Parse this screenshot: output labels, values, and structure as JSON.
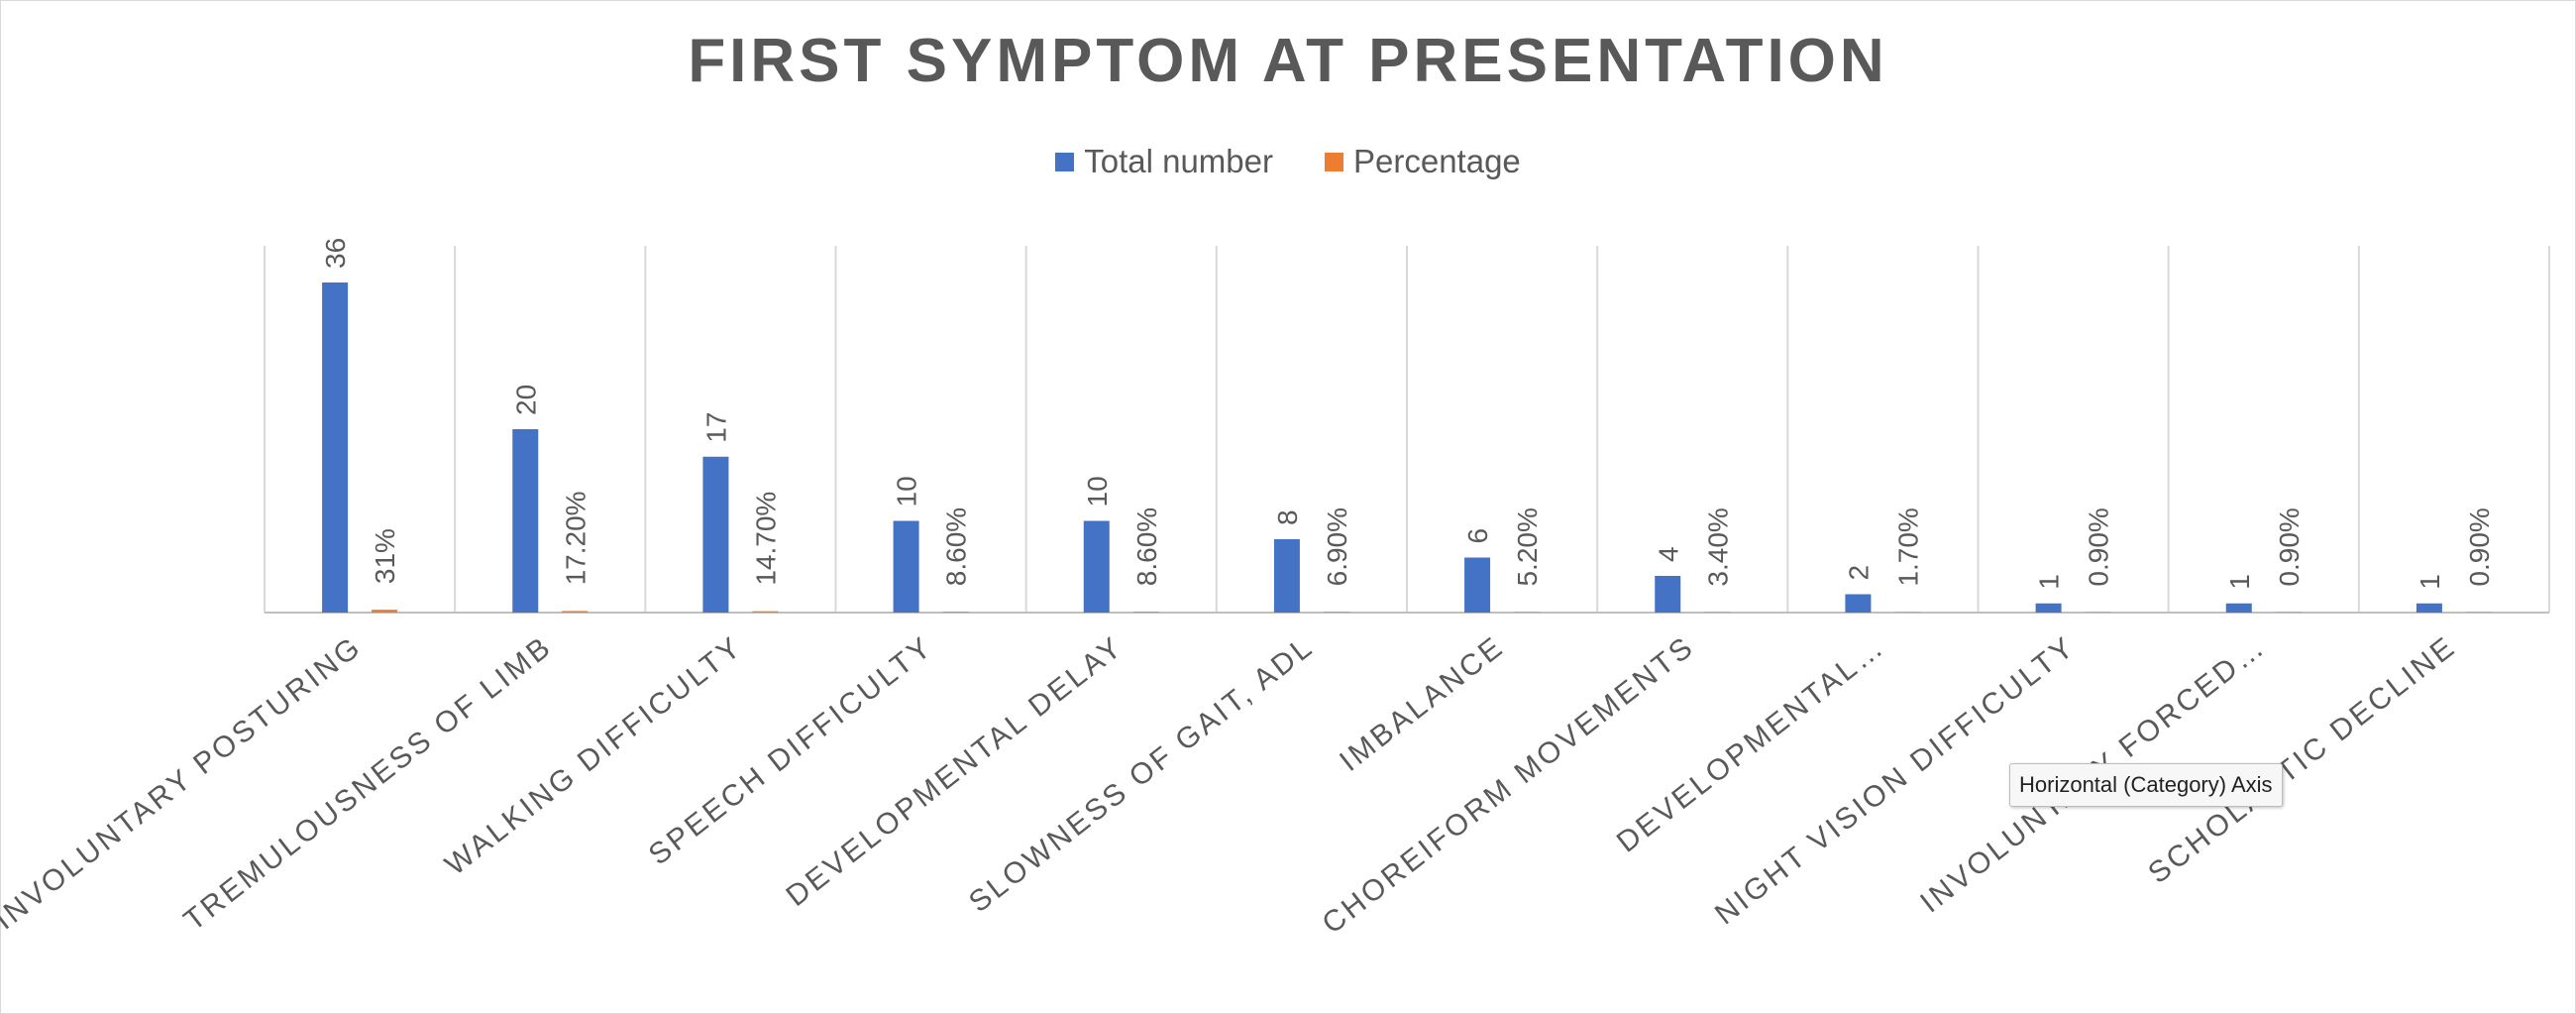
{
  "chart_data": {
    "type": "bar",
    "title": "FIRST SYMPTOM AT PRESENTATION",
    "categories": [
      "INVOLUNTARY POSTURING",
      "TREMULOUSNESS OF LIMB",
      "WALKING DIFFICULTY",
      "SPEECH DIFFICULTY",
      "DEVELOPMENTAL DELAY",
      "SLOWNESS OF GAIT, ADL",
      "IMBALANCE",
      "CHOREIFORM MOVEMENTS",
      "DEVELOPMENTAL…",
      "NIGHT VISION DIFFICULTY",
      "INVOLUNTARY FORCED…",
      "SCHOLASTIC DECLINE"
    ],
    "series": [
      {
        "name": "Total number",
        "color": "#4472c4",
        "values": [
          36,
          20,
          17,
          10,
          10,
          8,
          6,
          4,
          2,
          1,
          1,
          1
        ],
        "labels": [
          "36",
          "20",
          "17",
          "10",
          "10",
          "8",
          "6",
          "4",
          "2",
          "1",
          "1",
          "1"
        ]
      },
      {
        "name": "Percentage",
        "color": "#ed7d31",
        "values": [
          0.31,
          0.172,
          0.147,
          0.086,
          0.086,
          0.069,
          0.052,
          0.034,
          0.017,
          0.009,
          0.009,
          0.009
        ],
        "labels": [
          "31%",
          "17.20%",
          "14.70%",
          "8.60%",
          "8.60%",
          "6.90%",
          "5.20%",
          "3.40%",
          "1.70%",
          "0.90%",
          "0.90%",
          "0.90%"
        ]
      }
    ],
    "ylim": [
      0,
      40
    ],
    "grid": "vertical category separators",
    "legend": "top-center",
    "xlabel": "",
    "ylabel": ""
  },
  "tooltip": "Horizontal (Category) Axis"
}
